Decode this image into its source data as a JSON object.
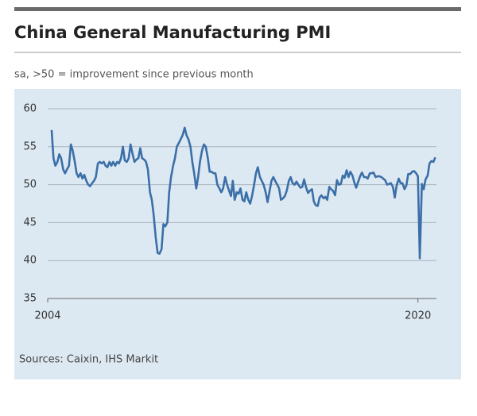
{
  "chart_data": {
    "type": "line",
    "title": "China General Manufacturing PMI",
    "subtitle": "sa, >50 = improvement since previous month",
    "source": "Sources: Caixin, IHS Markit",
    "color": "#3b6fa8",
    "grid": true,
    "xlim": [
      2004,
      2020.8
    ],
    "xticks": [
      2004,
      2020
    ],
    "ylim": [
      35,
      60
    ],
    "yticks": [
      35,
      40,
      45,
      50,
      55,
      60
    ],
    "x": [
      2004.17,
      2004.25,
      2004.33,
      2004.42,
      2004.5,
      2004.58,
      2004.67,
      2004.75,
      2004.83,
      2004.92,
      2005,
      2005.08,
      2005.17,
      2005.25,
      2005.33,
      2005.42,
      2005.5,
      2005.58,
      2005.67,
      2005.75,
      2005.83,
      2005.92,
      2006,
      2006.08,
      2006.17,
      2006.25,
      2006.33,
      2006.42,
      2006.5,
      2006.58,
      2006.67,
      2006.75,
      2006.83,
      2006.92,
      2007,
      2007.08,
      2007.17,
      2007.25,
      2007.33,
      2007.42,
      2007.5,
      2007.58,
      2007.67,
      2007.75,
      2007.83,
      2007.92,
      2008,
      2008.08,
      2008.17,
      2008.25,
      2008.33,
      2008.42,
      2008.5,
      2008.58,
      2008.67,
      2008.75,
      2008.83,
      2008.92,
      2009,
      2009.08,
      2009.17,
      2009.25,
      2009.33,
      2009.42,
      2009.5,
      2009.58,
      2009.67,
      2009.75,
      2009.83,
      2009.92,
      2010,
      2010.08,
      2010.17,
      2010.25,
      2010.33,
      2010.42,
      2010.5,
      2010.58,
      2010.67,
      2010.75,
      2010.83,
      2010.92,
      2011,
      2011.08,
      2011.17,
      2011.25,
      2011.33,
      2011.42,
      2011.5,
      2011.58,
      2011.67,
      2011.75,
      2011.83,
      2011.92,
      2012,
      2012.08,
      2012.17,
      2012.25,
      2012.33,
      2012.42,
      2012.5,
      2012.58,
      2012.67,
      2012.75,
      2012.83,
      2012.92,
      2013,
      2013.08,
      2013.17,
      2013.25,
      2013.33,
      2013.42,
      2013.5,
      2013.58,
      2013.67,
      2013.75,
      2013.83,
      2013.92,
      2014,
      2014.08,
      2014.17,
      2014.25,
      2014.33,
      2014.42,
      2014.5,
      2014.58,
      2014.67,
      2014.75,
      2014.83,
      2014.92,
      2015,
      2015.08,
      2015.17,
      2015.25,
      2015.33,
      2015.42,
      2015.5,
      2015.58,
      2015.67,
      2015.75,
      2015.83,
      2015.92,
      2016,
      2016.08,
      2016.17,
      2016.25,
      2016.33,
      2016.42,
      2016.5,
      2016.58,
      2016.67,
      2016.75,
      2016.83,
      2016.92,
      2017,
      2017.08,
      2017.17,
      2017.25,
      2017.33,
      2017.42,
      2017.5,
      2017.58,
      2017.67,
      2017.75,
      2017.83,
      2017.92,
      2018,
      2018.08,
      2018.17,
      2018.25,
      2018.33,
      2018.42,
      2018.5,
      2018.58,
      2018.67,
      2018.75,
      2018.83,
      2018.92,
      2019,
      2019.08,
      2019.17,
      2019.25,
      2019.33,
      2019.42,
      2019.5,
      2019.58,
      2019.67,
      2019.75,
      2019.83,
      2019.92,
      2020,
      2020.08,
      2020.17,
      2020.25,
      2020.33,
      2020.42,
      2020.5,
      2020.58,
      2020.67,
      2020.75
    ],
    "values": [
      57.2,
      53.5,
      52.5,
      53.0,
      54.0,
      53.5,
      52.0,
      51.5,
      52.0,
      52.5,
      55.3,
      54.5,
      53.0,
      51.5,
      51.0,
      51.5,
      50.8,
      51.3,
      50.5,
      50.0,
      49.8,
      50.2,
      50.5,
      51.0,
      52.8,
      53.0,
      52.8,
      53.0,
      52.5,
      52.3,
      53.0,
      52.5,
      53.0,
      52.5,
      53.0,
      52.8,
      53.5,
      55.0,
      53.2,
      53.0,
      53.5,
      55.3,
      54.0,
      53.0,
      53.3,
      53.5,
      54.8,
      53.5,
      53.3,
      53.0,
      52.0,
      49.0,
      48.0,
      46.0,
      43.0,
      41.0,
      40.9,
      41.5,
      44.8,
      44.5,
      45.0,
      49.0,
      51.0,
      52.5,
      53.5,
      55.0,
      55.5,
      56.0,
      56.5,
      57.5,
      56.5,
      56.0,
      55.0,
      53.0,
      51.5,
      49.5,
      51.0,
      53.0,
      54.5,
      55.3,
      55.0,
      53.5,
      51.7,
      51.7,
      51.5,
      51.5,
      50.0,
      49.5,
      49.0,
      49.5,
      51.0,
      50.0,
      49.3,
      48.5,
      50.5,
      48.0,
      49.0,
      48.8,
      49.5,
      48.0,
      47.8,
      49.0,
      48.0,
      47.5,
      48.5,
      50.0,
      51.5,
      52.3,
      51.0,
      50.5,
      50.0,
      49.0,
      47.7,
      49.0,
      50.5,
      51.0,
      50.5,
      50.0,
      49.5,
      48.0,
      48.2,
      48.5,
      49.2,
      50.5,
      51.0,
      50.2,
      50.0,
      50.4,
      50.0,
      49.6,
      49.7,
      50.7,
      49.6,
      48.9,
      49.2,
      49.4,
      47.8,
      47.3,
      47.2,
      48.3,
      48.6,
      48.2,
      48.4,
      48.0,
      49.7,
      49.4,
      49.2,
      48.6,
      50.6,
      50.0,
      50.1,
      51.2,
      50.9,
      51.9,
      51.0,
      51.7,
      51.2,
      50.3,
      49.6,
      50.4,
      51.1,
      51.6,
      51.0,
      51.0,
      50.8,
      51.5,
      51.5,
      51.6,
      51.0,
      51.1,
      51.1,
      51.0,
      50.8,
      50.6,
      50.0,
      50.1,
      50.2,
      49.7,
      48.3,
      49.9,
      50.8,
      50.2,
      50.2,
      49.4,
      49.9,
      51.4,
      51.4,
      51.7,
      51.8,
      51.5,
      51.1,
      40.3,
      50.1,
      49.4,
      50.7,
      51.2,
      52.8,
      53.1,
      53.0,
      53.6
    ]
  }
}
